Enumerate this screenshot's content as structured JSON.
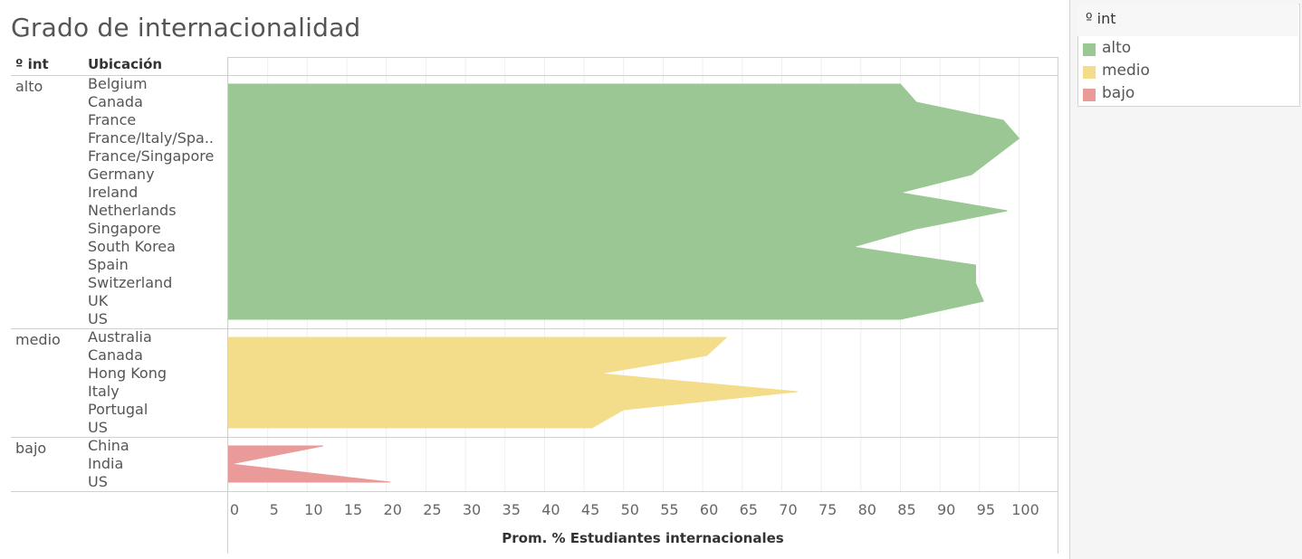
{
  "title": "Grado de internacionalidad",
  "headers": {
    "group": "º int",
    "location": "Ubicación"
  },
  "legend": {
    "title": "º int",
    "items": [
      {
        "label": "alto",
        "color": "#9bc794"
      },
      {
        "label": "medio",
        "color": "#f3dc8a"
      },
      {
        "label": "bajo",
        "color": "#eb9a9a"
      }
    ]
  },
  "chart_data": {
    "type": "area",
    "orientation": "horizontal",
    "xlabel": "Prom. % Estudiantes internacionales",
    "xlim": [
      0,
      105
    ],
    "ticks": [
      0,
      5,
      10,
      15,
      20,
      25,
      30,
      35,
      40,
      45,
      50,
      55,
      60,
      65,
      70,
      75,
      80,
      85,
      90,
      95,
      100
    ],
    "grid": true,
    "legend_position": "top-right",
    "groups": [
      {
        "name": "alto",
        "color": "#9bc794",
        "categories": [
          "Belgium",
          "Canada",
          "France",
          "France/Italy/Spa..",
          "France/Singapore",
          "Germany",
          "Ireland",
          "Netherlands",
          "Singapore",
          "South Korea",
          "Spain",
          "Switzerland",
          "UK",
          "US"
        ],
        "values": [
          85,
          87,
          98,
          100,
          97,
          94,
          85,
          98.5,
          87,
          79,
          94.5,
          94.5,
          95.5,
          85
        ]
      },
      {
        "name": "medio",
        "color": "#f3dc8a",
        "categories": [
          "Australia",
          "Canada",
          "Hong Kong",
          "Italy",
          "Portugal",
          "US"
        ],
        "values": [
          63,
          60.5,
          47,
          72,
          50,
          46
        ]
      },
      {
        "name": "bajo",
        "color": "#eb9a9a",
        "categories": [
          "China",
          "India",
          "US"
        ],
        "values": [
          12,
          0.3,
          20.5
        ]
      }
    ]
  }
}
